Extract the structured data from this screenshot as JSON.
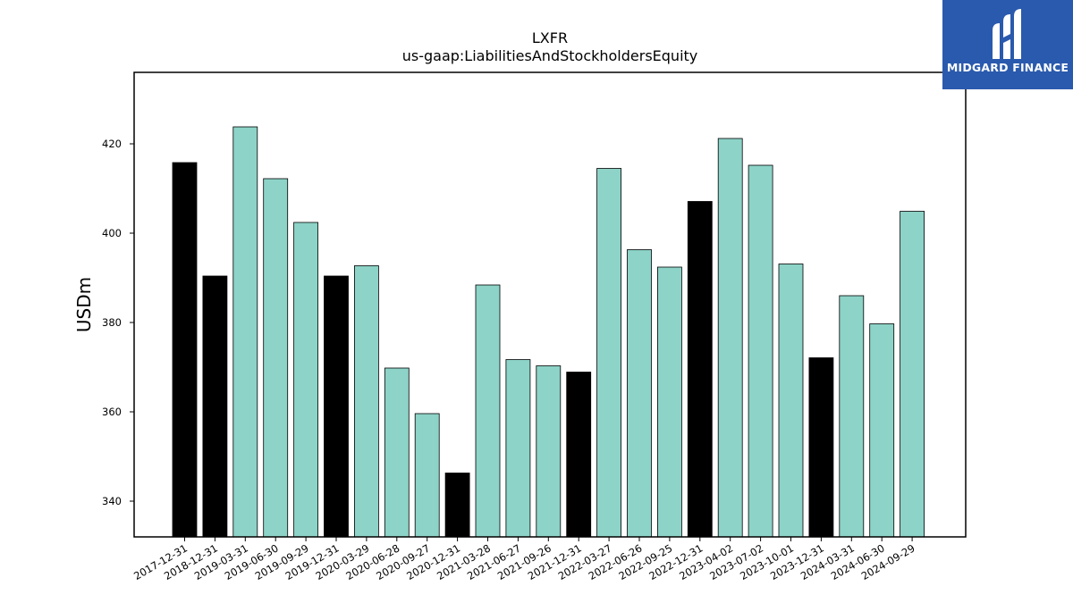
{
  "brand": {
    "name": "MIDGARD FINANCE",
    "logo_icon": "midgard-m-logo-icon",
    "background_color": "#2a5aad"
  },
  "colors": {
    "annual": "#000000",
    "quarterly": "#8dd3c7"
  },
  "chart_data": {
    "type": "bar",
    "title": "LXFR",
    "subtitle": "us-gaap:LiabilitiesAndStockholdersEquity",
    "xlabel": "",
    "ylabel": "USDm",
    "ylim": [
      332,
      436
    ],
    "yticks": [
      340,
      360,
      380,
      400,
      420
    ],
    "grid": false,
    "categories": [
      "2017-12-31",
      "2018-12-31",
      "2019-03-31",
      "2019-06-30",
      "2019-09-29",
      "2019-12-31",
      "2020-03-29",
      "2020-06-28",
      "2020-09-27",
      "2020-12-31",
      "2021-03-28",
      "2021-06-27",
      "2021-09-26",
      "2021-12-31",
      "2022-03-27",
      "2022-06-26",
      "2022-09-25",
      "2022-12-31",
      "2023-04-02",
      "2023-07-02",
      "2023-10-01",
      "2023-12-31",
      "2024-03-31",
      "2024-06-30",
      "2024-09-29"
    ],
    "values": [
      415.8,
      390.4,
      423.8,
      412.2,
      402.4,
      390.4,
      392.7,
      369.8,
      359.6,
      346.3,
      388.4,
      371.7,
      370.3,
      368.9,
      414.5,
      396.3,
      392.4,
      407.1,
      421.2,
      415.2,
      393.1,
      372.1,
      386.0,
      379.7,
      404.9
    ],
    "period_types": [
      "annual",
      "annual",
      "quarterly",
      "quarterly",
      "quarterly",
      "annual",
      "quarterly",
      "quarterly",
      "quarterly",
      "annual",
      "quarterly",
      "quarterly",
      "quarterly",
      "annual",
      "quarterly",
      "quarterly",
      "quarterly",
      "annual",
      "quarterly",
      "quarterly",
      "quarterly",
      "annual",
      "quarterly",
      "quarterly",
      "quarterly"
    ]
  }
}
